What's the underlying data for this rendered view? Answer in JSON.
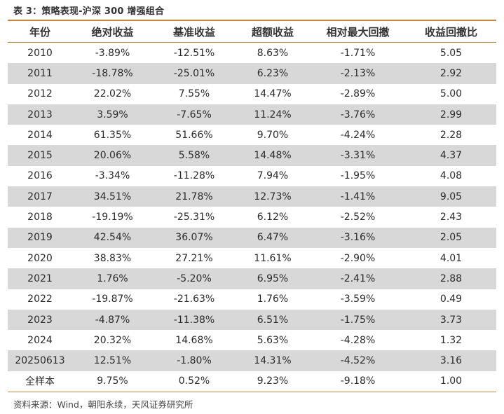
{
  "title": "表 3：策略表现-沪深 300 增强组合",
  "headers": [
    "年份",
    "绝对收益",
    "基准收益",
    "超额收益",
    "相对最大回撤",
    "收益回撤比"
  ],
  "rows": [
    [
      "2010",
      "-3.89%",
      "-12.51%",
      "8.63%",
      "-1.71%",
      "5.05"
    ],
    [
      "2011",
      "-18.78%",
      "-25.01%",
      "6.23%",
      "-2.13%",
      "2.92"
    ],
    [
      "2012",
      "22.02%",
      "7.55%",
      "14.47%",
      "-2.89%",
      "5.00"
    ],
    [
      "2013",
      "3.59%",
      "-7.65%",
      "11.24%",
      "-3.76%",
      "2.99"
    ],
    [
      "2014",
      "61.35%",
      "51.66%",
      "9.70%",
      "-4.24%",
      "2.28"
    ],
    [
      "2015",
      "20.06%",
      "5.58%",
      "14.48%",
      "-3.31%",
      "4.37"
    ],
    [
      "2016",
      "-3.34%",
      "-11.28%",
      "7.94%",
      "-1.95%",
      "4.08"
    ],
    [
      "2017",
      "34.51%",
      "21.78%",
      "12.73%",
      "-1.41%",
      "9.05"
    ],
    [
      "2018",
      "-19.19%",
      "-25.31%",
      "6.12%",
      "-2.52%",
      "2.43"
    ],
    [
      "2019",
      "42.54%",
      "36.07%",
      "6.47%",
      "-3.16%",
      "2.05"
    ],
    [
      "2020",
      "38.83%",
      "27.21%",
      "11.61%",
      "-2.90%",
      "4.01"
    ],
    [
      "2021",
      "1.76%",
      "-5.20%",
      "6.95%",
      "-2.41%",
      "2.88"
    ],
    [
      "2022",
      "-19.87%",
      "-21.63%",
      "1.76%",
      "-3.59%",
      "0.49"
    ],
    [
      "2023",
      "-4.87%",
      "-11.38%",
      "6.51%",
      "-1.75%",
      "3.73"
    ],
    [
      "2024",
      "20.32%",
      "14.68%",
      "5.63%",
      "-4.28%",
      "1.32"
    ],
    [
      "20250613",
      "12.51%",
      "-1.80%",
      "14.31%",
      "-4.52%",
      "3.16"
    ],
    [
      "全样本",
      "9.75%",
      "0.52%",
      "9.23%",
      "-9.18%",
      "1.00"
    ]
  ],
  "source": "资料来源：Wind，朝阳永续，天风证券研究所",
  "colors": {
    "accent_rule": "#c8863c",
    "row_shade": "#d8d8d8"
  }
}
